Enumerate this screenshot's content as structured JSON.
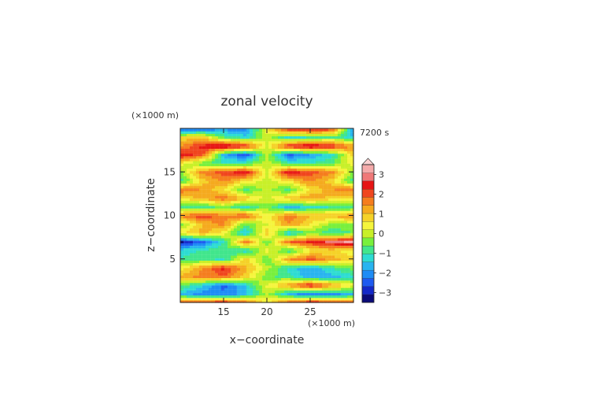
{
  "chart_data": {
    "type": "heatmap",
    "title": "zonal velocity",
    "xlabel": "x−coordinate",
    "ylabel": "z−coordinate",
    "x_unit": "(×1000 m)",
    "y_unit": "(×1000 m)",
    "time_label": "7200 s",
    "xlim": [
      10,
      30
    ],
    "ylim": [
      0,
      20
    ],
    "x_ticks": [
      15,
      20,
      25
    ],
    "y_ticks": [
      5,
      10,
      15
    ],
    "colorbar": {
      "min": -3.5,
      "max": 3.5,
      "tick_values": [
        3,
        2,
        1,
        0,
        -1,
        -2,
        -3
      ],
      "tick_labels": [
        "3",
        "2",
        "1",
        "0",
        "−1",
        "−2",
        "−3"
      ],
      "colors": [
        "#0a0a78",
        "#1428c8",
        "#1e5af0",
        "#1e8cf5",
        "#28b4f0",
        "#2ddcd2",
        "#41e68c",
        "#78f03c",
        "#c8f028",
        "#f5f53c",
        "#f5d228",
        "#f5aa1e",
        "#f57d1e",
        "#f0461e",
        "#e61414",
        "#f07878",
        "#f5aaaa"
      ],
      "extend": "max"
    },
    "field_samples": {
      "x": [
        10,
        12.5,
        15,
        17.5,
        20,
        22.5,
        25,
        27.5,
        30
      ],
      "z": [
        0,
        1,
        2,
        3,
        4,
        5,
        6,
        7,
        8,
        9,
        10,
        11,
        12,
        13,
        14,
        15,
        16,
        17,
        18,
        19,
        20
      ],
      "u": [
        [
          2.0,
          2.4,
          2.6,
          2.0,
          0.5,
          2.0,
          2.6,
          2.4,
          2.0
        ],
        [
          -1.6,
          -2.0,
          -2.2,
          -1.6,
          0.0,
          -1.6,
          -2.2,
          -2.0,
          -1.6
        ],
        [
          -0.5,
          -1.4,
          -2.4,
          -1.4,
          0.3,
          1.4,
          2.6,
          1.4,
          0.4
        ],
        [
          1.2,
          1.6,
          1.8,
          0.8,
          -0.5,
          -0.8,
          -1.8,
          -1.6,
          -1.2
        ],
        [
          0.4,
          1.4,
          2.4,
          1.2,
          0.0,
          -1.2,
          -1.8,
          -1.0,
          -0.4
        ],
        [
          -1.0,
          -0.8,
          -1.2,
          0.8,
          -0.6,
          1.4,
          2.0,
          1.2,
          0.8
        ],
        [
          -1.2,
          -1.0,
          -0.6,
          -1.4,
          0.5,
          -1.0,
          0.4,
          0.8,
          0.2
        ],
        [
          -3.2,
          -2.4,
          -1.0,
          1.8,
          -0.6,
          1.8,
          2.4,
          2.8,
          3.3
        ],
        [
          0.6,
          1.2,
          0.4,
          -1.6,
          1.0,
          -1.6,
          -0.4,
          -1.0,
          -0.6
        ],
        [
          -0.4,
          1.0,
          1.6,
          -0.6,
          0.2,
          1.4,
          0.6,
          -0.4,
          -0.2
        ],
        [
          1.6,
          2.2,
          1.6,
          2.0,
          0.3,
          1.8,
          1.0,
          1.2,
          1.4
        ],
        [
          -0.8,
          -1.0,
          -0.4,
          -1.2,
          -0.3,
          -1.8,
          -1.2,
          -1.0,
          -0.8
        ],
        [
          0.6,
          1.2,
          1.8,
          1.0,
          0.0,
          1.0,
          1.4,
          0.8,
          0.6
        ],
        [
          1.8,
          1.4,
          0.6,
          -0.8,
          0.0,
          -0.8,
          0.6,
          1.4,
          1.8
        ],
        [
          -1.0,
          0.8,
          1.6,
          0.6,
          0.0,
          0.6,
          1.6,
          0.8,
          -1.0
        ],
        [
          -0.4,
          1.6,
          2.0,
          2.6,
          0.2,
          2.6,
          2.0,
          1.6,
          -0.4
        ],
        [
          0.4,
          -0.6,
          -1.0,
          -0.8,
          0.0,
          -0.8,
          -1.0,
          -0.6,
          0.4
        ],
        [
          2.6,
          2.0,
          -1.6,
          -2.6,
          0.0,
          -2.4,
          -1.8,
          -1.2,
          0.8
        ],
        [
          1.4,
          2.4,
          3.0,
          2.4,
          0.2,
          2.4,
          3.0,
          2.4,
          1.4
        ],
        [
          0.6,
          1.0,
          -0.6,
          -1.2,
          0.0,
          -1.2,
          -1.0,
          -0.6,
          -1.4
        ],
        [
          -2.6,
          -2.4,
          -2.0,
          -2.2,
          0.5,
          2.4,
          2.6,
          2.2,
          -2.0
        ]
      ]
    }
  }
}
